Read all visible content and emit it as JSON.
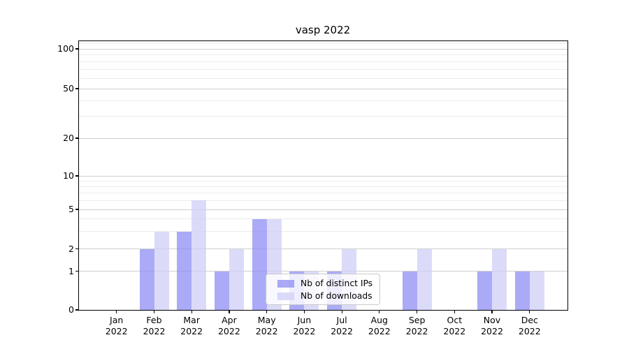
{
  "title": "vasp 2022",
  "chart_data": {
    "type": "bar",
    "title": "vasp 2022",
    "categories": [
      {
        "month": "Jan",
        "year": "2022"
      },
      {
        "month": "Feb",
        "year": "2022"
      },
      {
        "month": "Mar",
        "year": "2022"
      },
      {
        "month": "Apr",
        "year": "2022"
      },
      {
        "month": "May",
        "year": "2022"
      },
      {
        "month": "Jun",
        "year": "2022"
      },
      {
        "month": "Jul",
        "year": "2022"
      },
      {
        "month": "Aug",
        "year": "2022"
      },
      {
        "month": "Sep",
        "year": "2022"
      },
      {
        "month": "Oct",
        "year": "2022"
      },
      {
        "month": "Nov",
        "year": "2022"
      },
      {
        "month": "Dec",
        "year": "2022"
      }
    ],
    "series": [
      {
        "name": "Nb of distinct IPs",
        "color": "#8e8ef4",
        "opacity": 0.75,
        "values": [
          null,
          2,
          3,
          1,
          4,
          1,
          1,
          null,
          1,
          null,
          1,
          1
        ]
      },
      {
        "name": "Nb of downloads",
        "color": "#cfcff7",
        "opacity": 0.75,
        "values": [
          null,
          3,
          6,
          2,
          4,
          1,
          2,
          null,
          2,
          null,
          2,
          1
        ]
      }
    ],
    "yscale": "log-like (log above 1, linear segment 0-1)",
    "y_major_ticks": [
      0,
      1,
      2,
      5,
      10,
      20,
      50,
      100
    ],
    "y_minor_ticks": [
      3,
      4,
      6,
      7,
      8,
      9,
      30,
      40,
      60,
      70,
      80,
      90,
      110
    ],
    "ylim": [
      0,
      115
    ],
    "xlabel": "",
    "ylabel": "",
    "grid": true,
    "legend_position": "lower center (inside plot)",
    "colors": {
      "major_grid": "#cfcfcf",
      "minor_grid": "#ececec",
      "spine": "#000000",
      "legend_border": "#c9c9c9"
    }
  }
}
